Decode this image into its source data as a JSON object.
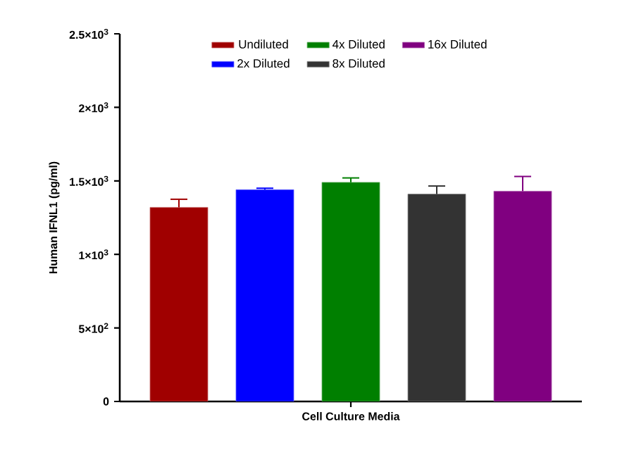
{
  "chart_data": {
    "type": "bar",
    "ylabel": "Human IFNL1 (pg/ml)",
    "categories": [
      "Cell Culture Media"
    ],
    "series": [
      {
        "name": "Undiluted",
        "color": "#a00000",
        "values": [
          1320
        ],
        "errors": [
          55
        ]
      },
      {
        "name": "2x Diluted",
        "color": "#0000ff",
        "values": [
          1440
        ],
        "errors": [
          10
        ]
      },
      {
        "name": "4x Diluted",
        "color": "#007f00",
        "values": [
          1490
        ],
        "errors": [
          30
        ]
      },
      {
        "name": "8x Diluted",
        "color": "#333333",
        "values": [
          1410
        ],
        "errors": [
          55
        ]
      },
      {
        "name": "16x Diluted",
        "color": "#800080",
        "values": [
          1430
        ],
        "errors": [
          100
        ]
      }
    ],
    "ylim": [
      0,
      2500
    ],
    "yticks": [
      0,
      {
        "value": 500,
        "label": "5×10$^{2}$"
      },
      {
        "value": 1000,
        "label": "1×10$^{3}$"
      },
      {
        "value": 1500,
        "label": "1.5×10$^{3}$"
      },
      {
        "value": 2000,
        "label": "2×10$^{3}$"
      },
      {
        "value": 2500,
        "label": "2.5×10$^{3}$"
      }
    ],
    "grid": false,
    "legend": "top"
  }
}
